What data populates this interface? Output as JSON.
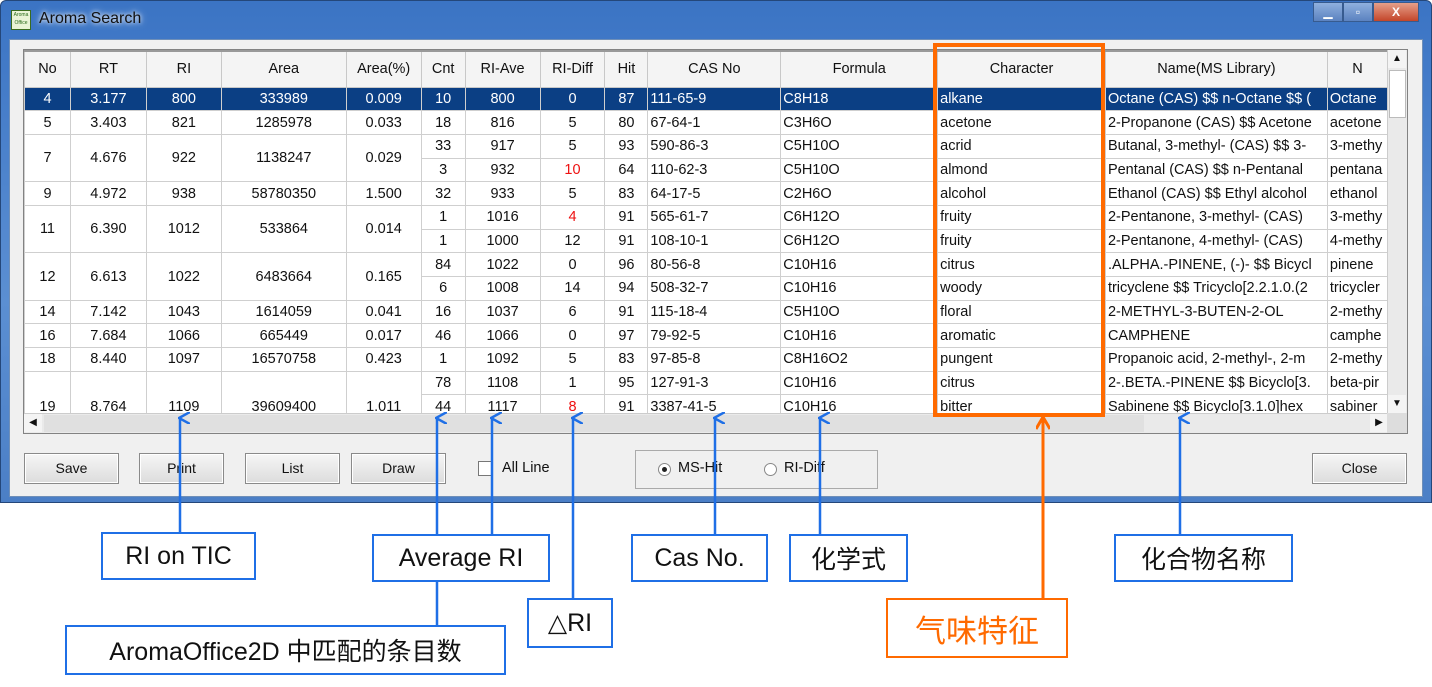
{
  "window": {
    "title": "Aroma Search",
    "icon": "aroma-office-icon",
    "controls": [
      "minimize",
      "maximize",
      "close"
    ]
  },
  "table": {
    "columns": [
      "No",
      "RT",
      "RI",
      "Area",
      "Area(%)",
      "Cnt",
      "RI-Ave",
      "RI-Diff",
      "Hit",
      "CAS No",
      "Formula",
      "Character",
      "Name(MS Library)",
      "N"
    ],
    "groups": [
      {
        "no": "4",
        "rt": "3.177",
        "ri": "800",
        "area": "333989",
        "area_pct": "0.009",
        "selected": true,
        "hits": [
          {
            "cnt": "10",
            "ri_ave": "800",
            "ri_diff": "0",
            "hit": "87",
            "cas": "111-65-9",
            "formula": "C8H18",
            "character": "alkane",
            "name": "Octane (CAS) $$ n-Octane $$ (",
            "name2": "Octane"
          }
        ]
      },
      {
        "no": "5",
        "rt": "3.403",
        "ri": "821",
        "area": "1285978",
        "area_pct": "0.033",
        "hits": [
          {
            "cnt": "18",
            "ri_ave": "816",
            "ri_diff": "5",
            "hit": "80",
            "cas": "67-64-1",
            "formula": "C3H6O",
            "character": "acetone",
            "name": "2-Propanone (CAS) $$ Acetone",
            "name2": "acetone"
          }
        ]
      },
      {
        "no": "7",
        "rt": "4.676",
        "ri": "922",
        "area": "1138247",
        "area_pct": "0.029",
        "hits": [
          {
            "cnt": "33",
            "ri_ave": "917",
            "ri_diff": "5",
            "hit": "93",
            "cas": "590-86-3",
            "formula": "C5H10O",
            "character": "acrid",
            "name": "Butanal, 3-methyl- (CAS) $$ 3-",
            "name2": "3-methy"
          },
          {
            "cnt": "3",
            "ri_ave": "932",
            "ri_diff": "10",
            "ri_diff_red": true,
            "hit": "64",
            "cas": "110-62-3",
            "formula": "C5H10O",
            "character": "almond",
            "name": "Pentanal (CAS) $$ n-Pentanal",
            "name2": "pentana"
          }
        ]
      },
      {
        "no": "9",
        "rt": "4.972",
        "ri": "938",
        "area": "58780350",
        "area_pct": "1.500",
        "hits": [
          {
            "cnt": "32",
            "ri_ave": "933",
            "ri_diff": "5",
            "hit": "83",
            "cas": "64-17-5",
            "formula": "C2H6O",
            "character": "alcohol",
            "name": "Ethanol (CAS) $$ Ethyl alcohol",
            "name2": "ethanol"
          }
        ]
      },
      {
        "no": "11",
        "rt": "6.390",
        "ri": "1012",
        "area": "533864",
        "area_pct": "0.014",
        "hits": [
          {
            "cnt": "1",
            "ri_ave": "1016",
            "ri_diff": "4",
            "ri_diff_red": true,
            "hit": "91",
            "cas": "565-61-7",
            "formula": "C6H12O",
            "character": "fruity",
            "name": "2-Pentanone, 3-methyl- (CAS)",
            "name2": "3-methy"
          },
          {
            "cnt": "1",
            "ri_ave": "1000",
            "ri_diff": "12",
            "hit": "91",
            "cas": "108-10-1",
            "formula": "C6H12O",
            "character": "fruity",
            "name": "2-Pentanone, 4-methyl- (CAS)",
            "name2": "4-methy"
          }
        ]
      },
      {
        "no": "12",
        "rt": "6.613",
        "ri": "1022",
        "area": "6483664",
        "area_pct": "0.165",
        "hits": [
          {
            "cnt": "84",
            "ri_ave": "1022",
            "ri_diff": "0",
            "hit": "96",
            "cas": "80-56-8",
            "formula": "C10H16",
            "character": "citrus",
            "name": ".ALPHA.-PINENE, (-)- $$ Bicycl",
            "name2": "pinene"
          },
          {
            "cnt": "6",
            "ri_ave": "1008",
            "ri_diff": "14",
            "hit": "94",
            "cas": "508-32-7",
            "formula": "C10H16",
            "character": "woody",
            "name": "tricyclene $$ Tricyclo[2.2.1.0.(2",
            "name2": "tricycler"
          }
        ]
      },
      {
        "no": "14",
        "rt": "7.142",
        "ri": "1043",
        "area": "1614059",
        "area_pct": "0.041",
        "hits": [
          {
            "cnt": "16",
            "ri_ave": "1037",
            "ri_diff": "6",
            "hit": "91",
            "cas": "115-18-4",
            "formula": "C5H10O",
            "character": "floral",
            "name": "2-METHYL-3-BUTEN-2-OL",
            "name2": "2-methy"
          }
        ]
      },
      {
        "no": "16",
        "rt": "7.684",
        "ri": "1066",
        "area": "665449",
        "area_pct": "0.017",
        "hits": [
          {
            "cnt": "46",
            "ri_ave": "1066",
            "ri_diff": "0",
            "hit": "97",
            "cas": "79-92-5",
            "formula": "C10H16",
            "character": "aromatic",
            "name": "CAMPHENE",
            "name2": "camphe"
          }
        ]
      },
      {
        "no": "18",
        "rt": "8.440",
        "ri": "1097",
        "area": "16570758",
        "area_pct": "0.423",
        "hits": [
          {
            "cnt": "1",
            "ri_ave": "1092",
            "ri_diff": "5",
            "hit": "83",
            "cas": "97-85-8",
            "formula": "C8H16O2",
            "character": "pungent",
            "name": "Propanoic acid, 2-methyl-, 2-m",
            "name2": "2-methy"
          }
        ]
      },
      {
        "no": "19",
        "rt": "8.764",
        "ri": "1109",
        "area": "39609400",
        "area_pct": "1.011",
        "hits": [
          {
            "cnt": "78",
            "ri_ave": "1108",
            "ri_diff": "1",
            "hit": "95",
            "cas": "127-91-3",
            "formula": "C10H16",
            "character": "citrus",
            "name": "2-.BETA.-PINENE $$ Bicyclo[3.",
            "name2": "beta-pir"
          },
          {
            "cnt": "44",
            "ri_ave": "1117",
            "ri_diff": "8",
            "ri_diff_red": true,
            "hit": "91",
            "cas": "3387-41-5",
            "formula": "C10H16",
            "character": "bitter",
            "name": "Sabinene $$ Bicyclo[3.1.0]hex",
            "name2": "sabiner"
          }
        ]
      }
    ]
  },
  "buttons": {
    "save": "Save",
    "print": "Print",
    "list": "List",
    "draw": "Draw",
    "close": "Close"
  },
  "all_line": {
    "label": "All Line",
    "checked": false
  },
  "sort_mode": {
    "options": [
      "MS-Hit",
      "RI-Diff"
    ],
    "selected": "MS-Hit"
  },
  "annotations": {
    "ri_on_tic": "RI on TIC",
    "average_ri": "Average RI",
    "match_count": "AromaOffice2D 中匹配的条目数",
    "delta_ri": "△RI",
    "cas_no": "Cas No.",
    "formula": "化学式",
    "character": "气味特征",
    "compound_name": "化合物名称"
  },
  "colors": {
    "selection": "#0b3f84",
    "red_diff": "#ee1111",
    "annotation_blue": "#1f6fe6",
    "annotation_orange": "#ff6a00"
  }
}
